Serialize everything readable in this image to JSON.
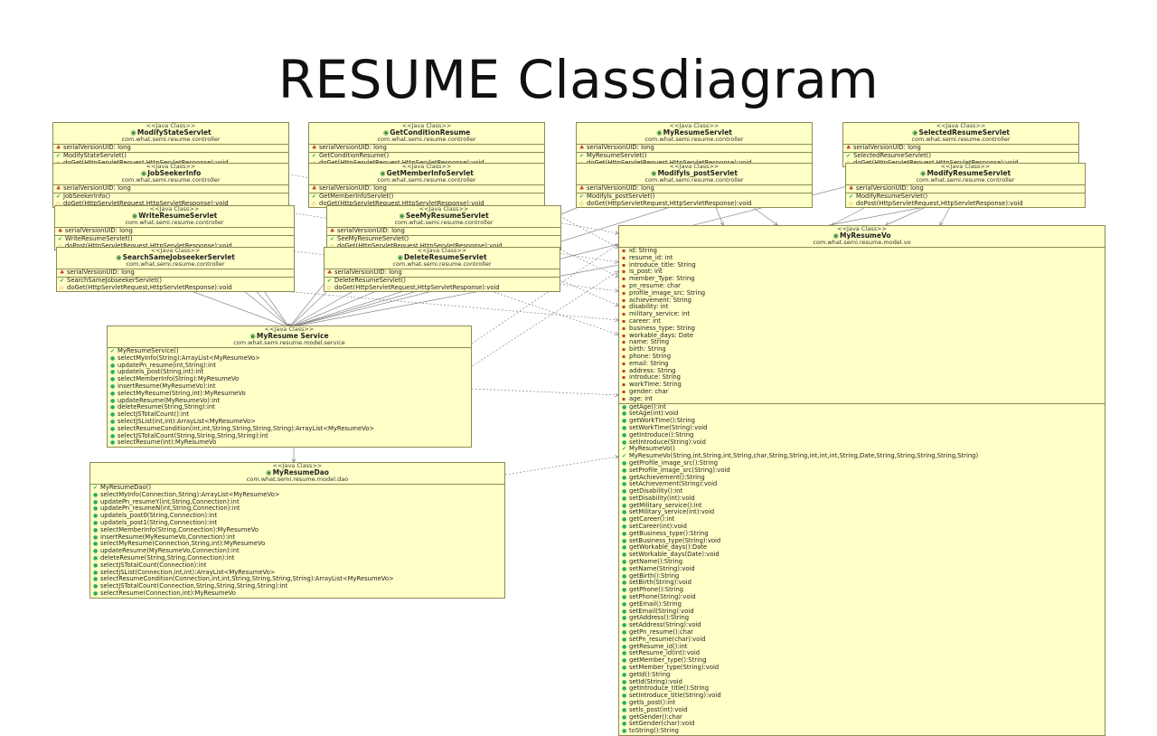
{
  "title": "RESUME Classdiagram",
  "stereotype": "<<Java Class>>",
  "classes": {
    "modifyState": {
      "name": "ModifyStateServlet",
      "package": "com.what.semi.resume.controller",
      "fields": [
        "serialVersionUID: long"
      ],
      "methods": [
        "ModifyStateServlet()",
        "doGet(HttpServletRequest,HttpServletResponse):void"
      ]
    },
    "getCondition": {
      "name": "GetConditionResume",
      "package": "com.what.semi.resume.controller",
      "fields": [
        "serialVersionUID: long"
      ],
      "methods": [
        "GetConditionResume()",
        "doGet(HttpServletRequest,HttpServletResponse):void"
      ]
    },
    "myResumeServlet": {
      "name": "MyResumeServlet",
      "package": "com.what.semi.resume.controller",
      "fields": [
        "serialVersionUID: long"
      ],
      "methods": [
        "MyResumeServlet()",
        "doGet(HttpServletRequest,HttpServletResponse):void"
      ]
    },
    "selectedResume": {
      "name": "SelectedResumeServlet",
      "package": "com.what.semi.resume.controller",
      "fields": [
        "serialVersionUID: long"
      ],
      "methods": [
        "SelectedResumeServlet()",
        "doGet(HttpServletRequest,HttpServletResponse):void"
      ]
    },
    "jobSeekerInfo": {
      "name": "JobSeekerInfo",
      "package": "com.what.semi.resume.controller",
      "fields": [
        "serialVersionUID: long"
      ],
      "methods": [
        "JobSeekerInfo()",
        "doGet(HttpServletRequest,HttpServletResponse):void"
      ]
    },
    "getMemberInfo": {
      "name": "GetMemberInfoServlet",
      "package": "com.what.semi.resume.controller",
      "fields": [
        "serialVersionUID: long"
      ],
      "methods": [
        "GetMemberInfoServlet()",
        "doGet(HttpServletRequest,HttpServletResponse):void"
      ]
    },
    "modifyIsPost": {
      "name": "Modifyls_postServlet",
      "package": "com.what.semi.resume.controller",
      "fields": [
        "serialVersionUID: long"
      ],
      "methods": [
        "Modifyls_postServlet()",
        "doGet(HttpServletRequest,HttpServletResponse):void"
      ]
    },
    "modifyResume": {
      "name": "ModifyResumeServlet",
      "package": "com.what.semi.resume.controller",
      "fields": [
        "serialVersionUID: long"
      ],
      "methods": [
        "ModifyResumeServlet()",
        "doPost(HttpServletRequest,HttpServletResponse):void"
      ]
    },
    "writeResume": {
      "name": "WriteResumeServlet",
      "package": "com.what.semi.resume.controller",
      "fields": [
        "serialVersionUID: long"
      ],
      "methods": [
        "WriteResumeServlet()",
        "doPost(HttpServletRequest,HttpServletResponse):void"
      ]
    },
    "seeMyResume": {
      "name": "SeeMyResumeServlet",
      "package": "com.what.semi.resume.controller",
      "fields": [
        "serialVersionUID: long"
      ],
      "methods": [
        "SeeMyResumeServlet()",
        "doGet(HttpServletRequest,HttpServletResponse):void"
      ]
    },
    "searchSame": {
      "name": "SearchSameJobseekerServlet",
      "package": "com.what.semi.resume.controller",
      "fields": [
        "serialVersionUID: long"
      ],
      "methods": [
        "SearchSameJobseekerServlet()",
        "doGet(HttpServletRequest,HttpServletResponse):void"
      ]
    },
    "deleteResume": {
      "name": "DeleteResumeServlet",
      "package": "com.what.semi.resume.controller",
      "fields": [
        "serialVersionUID: long"
      ],
      "methods": [
        "DeleteResumeServlet()",
        "doGet(HttpServletRequest,HttpServletResponse):void"
      ]
    },
    "service": {
      "name": "MyResume Service",
      "package": "com.what.semi.resume.model.service",
      "fields": [],
      "methods": [
        "MyResumeService()",
        "selectMyInfo(String):ArrayList<MyResumeVo>",
        "updatePn_resume(int,String):int",
        "updatels_post(String,int):int",
        "selectMemberInfo(String):MyResumeVo",
        "insertResume(MyResumeVo):int",
        "selectMyResume(String,int):MyResumeVo",
        "updateResume(MyResumeVo):int",
        "deleteResume(String,String):int",
        "selectJSTotalCount():int",
        "selectJSList(int,int):ArrayList<MyResumeVo>",
        "selectResumeCondition(int,int,String,String,String,String):ArrayList<MyResumeVo>",
        "selectJSTotalCount(String,String,String,String):int",
        "selectResume(int):MyResumeVo"
      ]
    },
    "dao": {
      "name": "MyResumeDao",
      "package": "com.what.semi.resume.model.dao",
      "fields": [],
      "methods": [
        "MyResumeDao()",
        "selectMyInfo(Connection,String):ArrayList<MyResumeVo>",
        "updatePn_resumeY(int,String,Connection):int",
        "updatePn_resumeN(int,String,Connection):int",
        "updatels_post0(String,Connection):int",
        "updatels_post1(String,Connection):int",
        "selectMemberInfo(String,Connection):MyResumeVo",
        "insertResume(MyResumeVo,Connection):int",
        "selectMyResume(Connection,String,int):MyResumeVo",
        "updateResume(MyResumeVo,Connection):int",
        "deleteResume(String,String,Connection):int",
        "selectJSTotalCount(Connection):int",
        "selectJSList(Connection,int,int):ArrayList<MyResumeVo>",
        "selectResumeCondition(Connection,int,int,String,String,String,String):ArrayList<MyResumeVo>",
        "selectJSTotalCount(Connection,String,String,String,String):int",
        "selectResume(Connection,int):MyResumeVo"
      ]
    },
    "vo": {
      "name": "MyResumeVo",
      "package": "com.what.semi.resume.model.vo",
      "fields": [
        "id: String",
        "resume_id: int",
        "introduce_title: String",
        "is_post: int",
        "member_Type: String",
        "pn_resume: char",
        "profile_image_src: String",
        "achievement: String",
        "disability: int",
        "military_service: int",
        "career: int",
        "business_type: String",
        "workable_days: Date",
        "name: String",
        "birth: String",
        "phone: String",
        "email: String",
        "address: String",
        "introduce: String",
        "workTime: String",
        "gender: char",
        "age: int"
      ],
      "methods": [
        "getAge():int",
        "setAge(int):void",
        "getWorkTime():String",
        "setWorkTime(String):void",
        "getIntroduce():String",
        "setIntroduce(String):void",
        "MyResumeVo()",
        "MyResumeVo(String,int,String,int,String,char,String,String,int,int,int,String,Date,String,String,String,String,String)",
        "getProfile_image_src():String",
        "setProfile_image_src(String):void",
        "getAchievement():String",
        "setAchievement(String):void",
        "getDisability():int",
        "setDisability(int):void",
        "getMilitary_service():int",
        "setMilitary_service(int):void",
        "getCareer():int",
        "setCareer(int):void",
        "getBusiness_type():String",
        "setBusiness_type(String):void",
        "getWorkable_days():Date",
        "setWorkable_days(Date):void",
        "getName():String",
        "setName(String):void",
        "getBirth():String",
        "setBirth(String):void",
        "getPhone():String",
        "setPhone(String):void",
        "getEmail():String",
        "setEmail(String):void",
        "getAddress():String",
        "setAddress(String):void",
        "getPn_resume():char",
        "setPn_resume(char):void",
        "getResume_id():int",
        "setResume_id(int):void",
        "getMember_type():String",
        "setMember_type(String):void",
        "getId():String",
        "setId(String):void",
        "getIntroduce_title():String",
        "setIntroduce_title(String):void",
        "getls_post():int",
        "setls_post(int):void",
        "getGender():char",
        "setGender(char):void",
        "toString():String"
      ]
    }
  }
}
